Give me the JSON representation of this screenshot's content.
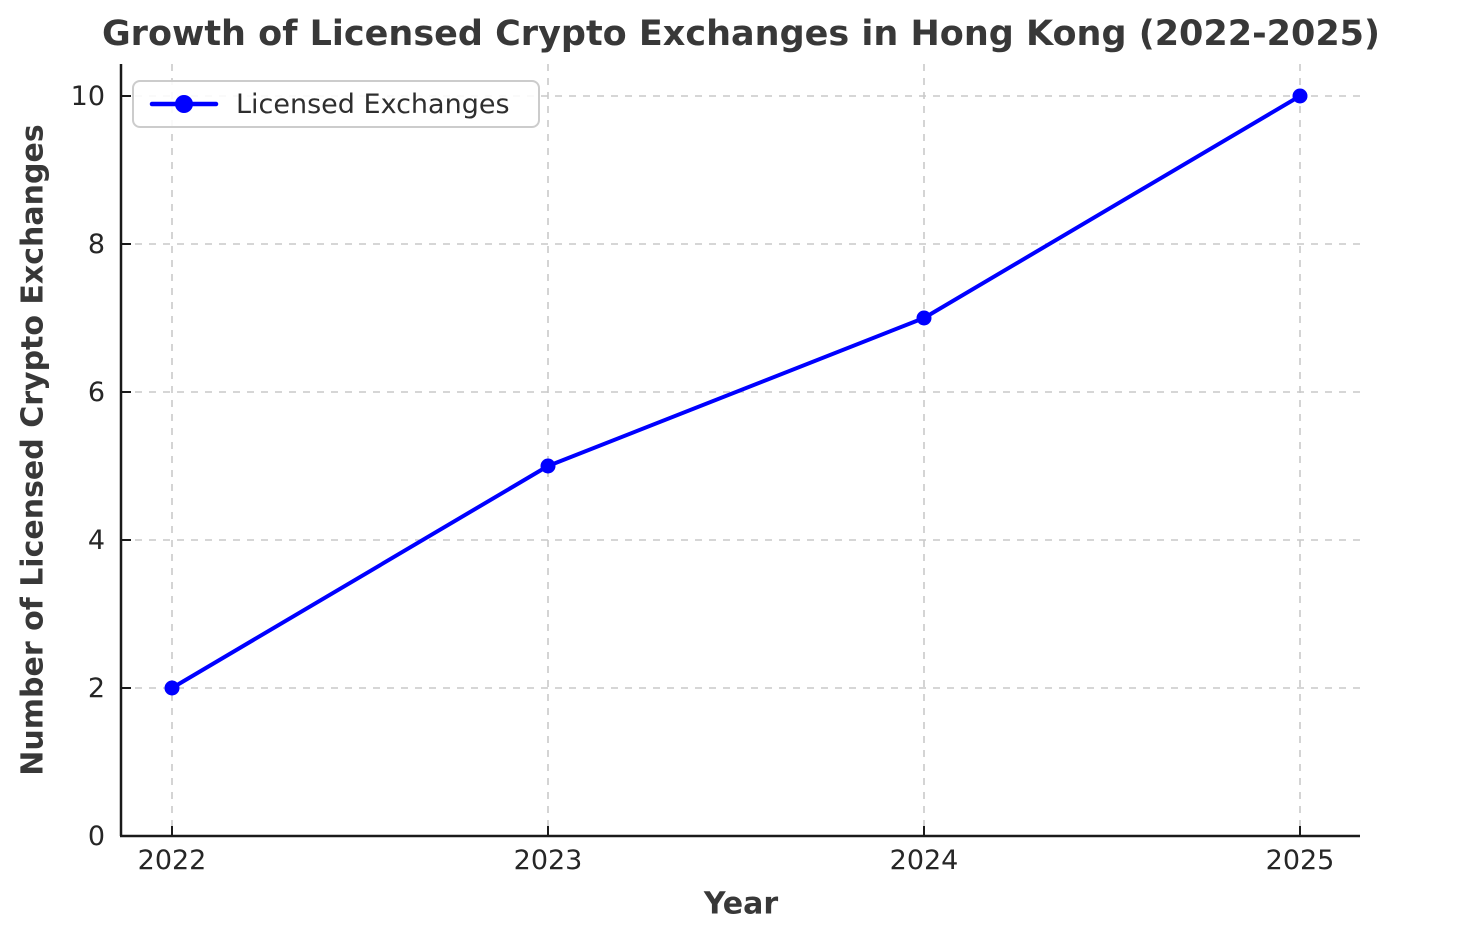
{
  "chart_data": {
    "type": "line",
    "title": "Growth of Licensed Crypto Exchanges in Hong Kong (2022-2025)",
    "xlabel": "Year",
    "ylabel": "Number of Licensed Crypto Exchanges",
    "x": [
      2022,
      2023,
      2024,
      2025
    ],
    "series": [
      {
        "name": "Licensed Exchanges",
        "values": [
          2,
          5,
          7,
          10
        ]
      }
    ],
    "yticks": [
      0,
      2,
      4,
      6,
      8,
      10
    ],
    "ylim": [
      0,
      10.4
    ],
    "grid": true,
    "legend_position": "upper left",
    "marker": "circle",
    "colors": {
      "line": "#0000ff",
      "grid": "#c9c9c9",
      "axis": "#1a1a1a",
      "tick_text": "#262626",
      "title_text": "#383838",
      "legend_border": "#cccccc",
      "background": "#ffffff"
    }
  }
}
